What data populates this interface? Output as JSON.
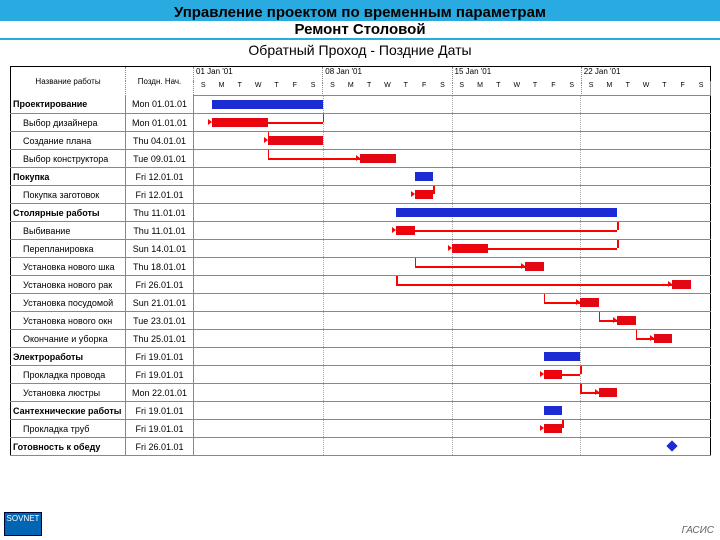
{
  "header": {
    "title1": "Управление проектом по временным параметрам",
    "title2": "Ремонт Столовой",
    "subtitle": "Обратный Проход - Поздние Даты"
  },
  "columns": {
    "name": "Название работы",
    "date": "Поздн. Нач."
  },
  "timeline": {
    "start_day": 0,
    "total_days": 28,
    "day_width": 18.4,
    "weeks": [
      "01 Jan '01",
      "08 Jan '01",
      "15 Jan '01",
      "22 Jan '01"
    ],
    "day_labels": [
      "S",
      "M",
      "T",
      "W",
      "T",
      "F",
      "S"
    ]
  },
  "colors": {
    "bar_task": "#e30613",
    "bar_group": "#1d2bd4",
    "header_bg": "#29abe2",
    "link": "#e30613"
  },
  "rows": [
    {
      "name": "Проектирование",
      "date": "Mon 01.01.01",
      "group": true,
      "start": 1,
      "dur": 6,
      "color": "#1d2bd4"
    },
    {
      "name": "Выбор дизайнера",
      "date": "Mon 01.01.01",
      "group": false,
      "start": 1,
      "dur": 3,
      "color": "#e30613",
      "link_to": 1
    },
    {
      "name": "Создание плана",
      "date": "Thu 04.01.01",
      "group": false,
      "start": 4,
      "dur": 3,
      "color": "#e30613",
      "link_to": 1
    },
    {
      "name": "Выбор конструктора",
      "date": "Tue 09.01.01",
      "group": false,
      "start": 9,
      "dur": 2,
      "color": "#e30613",
      "link_to": 2
    },
    {
      "name": "Покупка",
      "date": "Fri 12.01.01",
      "group": true,
      "start": 12,
      "dur": 1,
      "color": "#1d2bd4"
    },
    {
      "name": "Покупка заготовок",
      "date": "Fri 12.01.01",
      "group": false,
      "start": 12,
      "dur": 1,
      "color": "#e30613",
      "link_to": 1
    },
    {
      "name": "Столярные работы",
      "date": "Thu 11.01.01",
      "group": true,
      "start": 11,
      "dur": 12,
      "color": "#1d2bd4"
    },
    {
      "name": "Выбивание",
      "date": "Thu 11.01.01",
      "group": false,
      "start": 11,
      "dur": 1,
      "color": "#e30613",
      "link_to": 1
    },
    {
      "name": "Перепланировка",
      "date": "Sun 14.01.01",
      "group": false,
      "start": 14,
      "dur": 2,
      "color": "#e30613",
      "link_to": 2
    },
    {
      "name": "Установка нового шка",
      "date": "Thu 18.01.01",
      "group": false,
      "start": 18,
      "dur": 1,
      "color": "#e30613",
      "link_to": 2
    },
    {
      "name": "Установка нового рак",
      "date": "Fri 26.01.01",
      "group": false,
      "start": 26,
      "dur": 1,
      "color": "#e30613",
      "link_to": 7
    },
    {
      "name": "Установка посудомой",
      "date": "Sun 21.01.01",
      "group": false,
      "start": 21,
      "dur": 1,
      "color": "#e30613",
      "link_to": 2
    },
    {
      "name": "Установка нового окн",
      "date": "Tue 23.01.01",
      "group": false,
      "start": 23,
      "dur": 1,
      "color": "#e30613",
      "link_to": 1
    },
    {
      "name": "Окончание и уборка",
      "date": "Thu 25.01.01",
      "group": false,
      "start": 25,
      "dur": 1,
      "color": "#e30613",
      "link_to": 1
    },
    {
      "name": "Электроработы",
      "date": "Fri 19.01.01",
      "group": true,
      "start": 19,
      "dur": 2,
      "color": "#1d2bd4"
    },
    {
      "name": "Прокладка провода",
      "date": "Fri 19.01.01",
      "group": false,
      "start": 19,
      "dur": 1,
      "color": "#e30613",
      "link_to": 1
    },
    {
      "name": "Установка люстры",
      "date": "Mon 22.01.01",
      "group": false,
      "start": 22,
      "dur": 1,
      "color": "#e30613",
      "link_to": 2
    },
    {
      "name": "Сантехнические работы",
      "date": "Fri 19.01.01",
      "group": true,
      "start": 19,
      "dur": 1,
      "color": "#1d2bd4"
    },
    {
      "name": "Прокладка труб",
      "date": "Fri 19.01.01",
      "group": false,
      "start": 19,
      "dur": 1,
      "color": "#e30613",
      "link_to": 1
    },
    {
      "name": "Готовность к обеду",
      "date": "Fri 26.01.01",
      "group": true,
      "start": 26,
      "dur": 0,
      "color": "#1d2bd4"
    }
  ],
  "footer": {
    "badge": "SOVNET",
    "right": "ГАСИС"
  }
}
